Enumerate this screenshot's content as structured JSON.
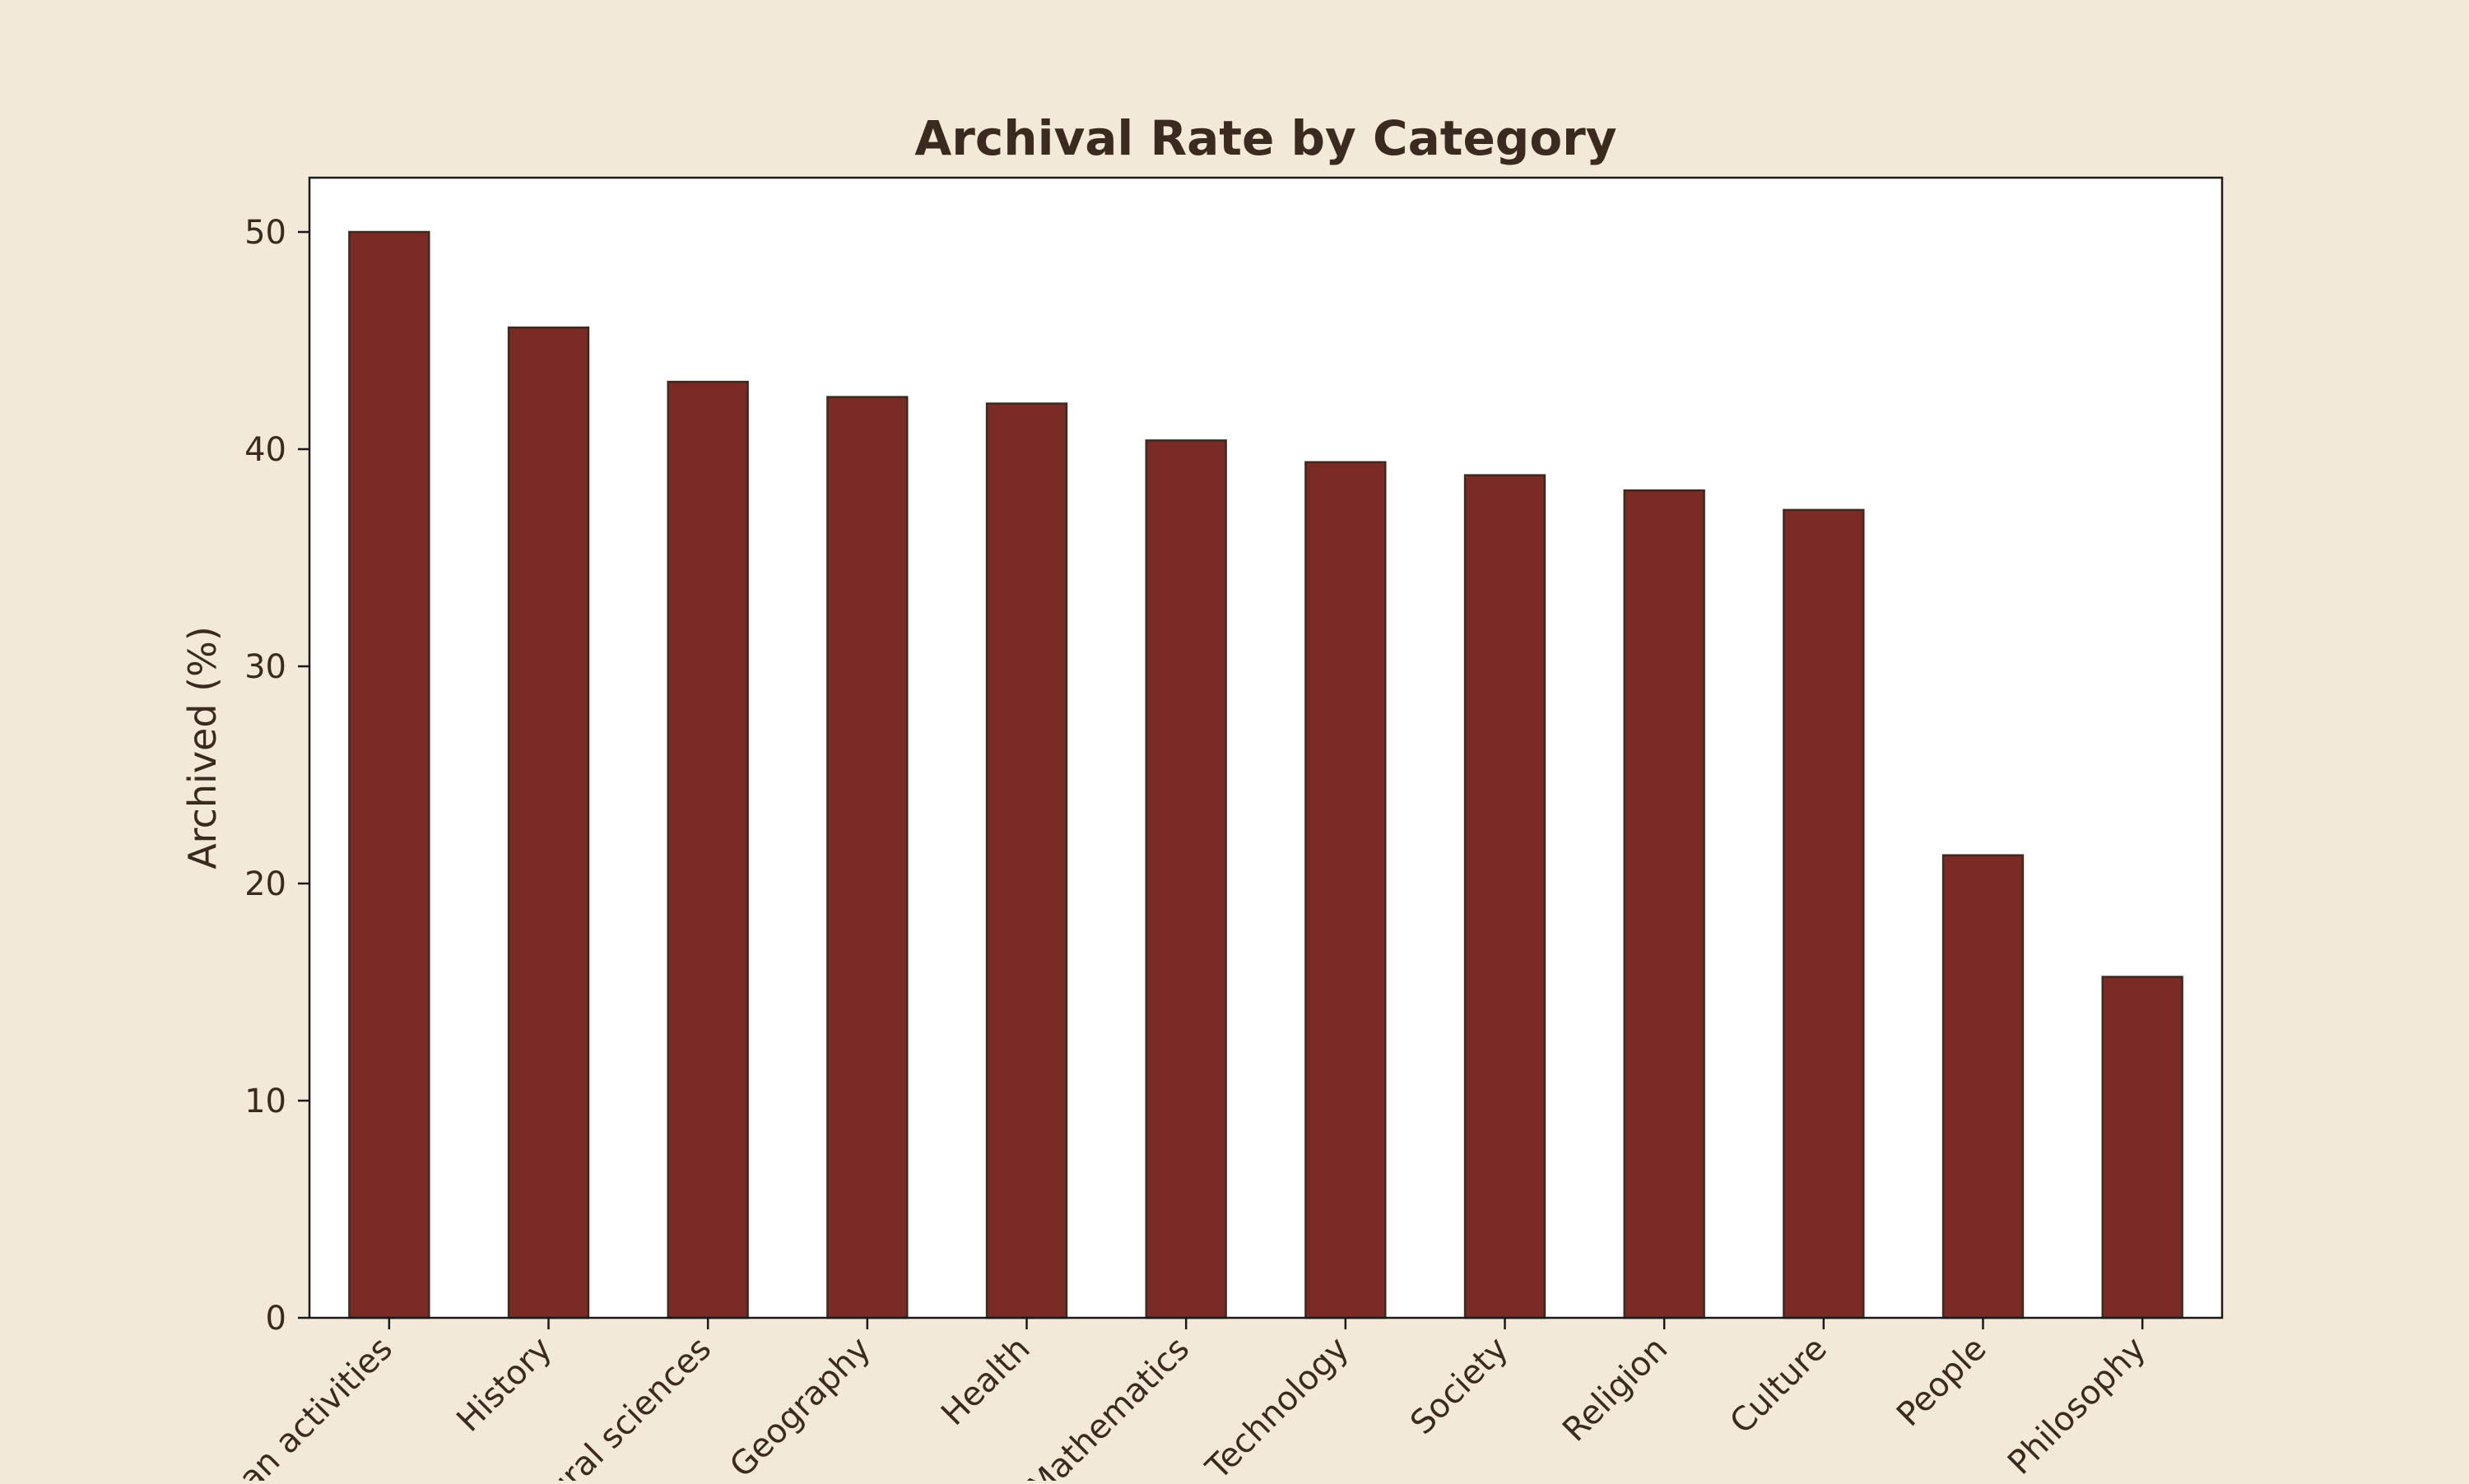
{
  "colors": {
    "page_background": "#f3e9d8",
    "plot_background": "#ffffff",
    "bar_fill": "#7b2b26",
    "bar_edge": "#3a2a20",
    "text": "#3a2a20"
  },
  "chart_data": {
    "type": "bar",
    "title": "Archival Rate by Category",
    "xlabel": "",
    "ylabel": "Archived (%)",
    "ylim": [
      0,
      52.5
    ],
    "yticks": [
      0,
      10,
      20,
      30,
      40,
      50
    ],
    "grid": false,
    "categories": [
      "Human activities",
      "History",
      "Natural sciences",
      "Geography",
      "Health",
      "Mathematics",
      "Technology",
      "Society",
      "Religion",
      "Culture",
      "People",
      "Philosophy"
    ],
    "values": [
      50.0,
      45.6,
      43.1,
      42.4,
      42.1,
      40.4,
      39.4,
      38.8,
      38.1,
      37.2,
      21.3,
      15.7
    ]
  }
}
